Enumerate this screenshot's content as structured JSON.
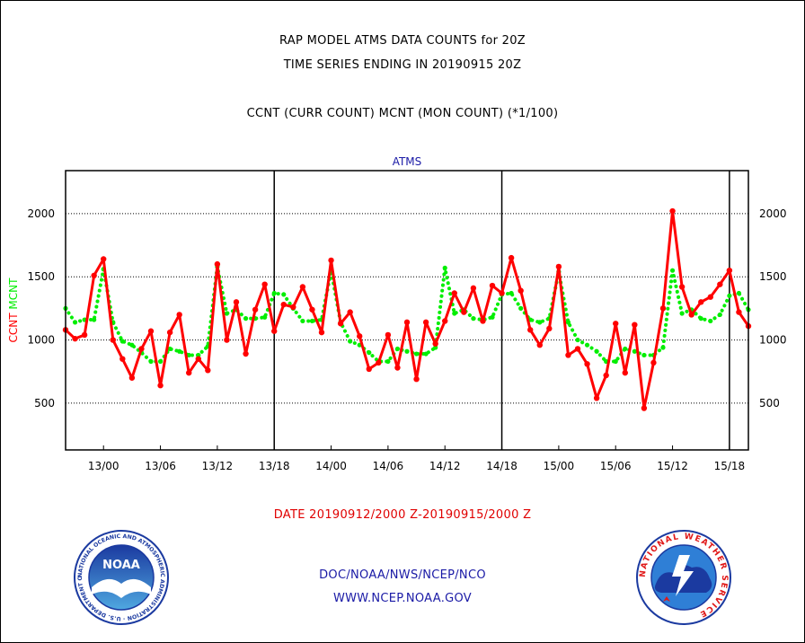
{
  "header": {
    "title_line1": "RAP MODEL ATMS DATA COUNTS for 20Z",
    "title_line2": "TIME SERIES ENDING IN 20190915 20Z",
    "subtitle": "CCNT (CURR COUNT) MCNT (MON COUNT) (*1/100)"
  },
  "footer": {
    "date_range": "DATE 20190912/2000 Z-20190915/2000 Z",
    "org": "DOC/NOAA/NWS/NCEP/NCO",
    "web": "WWW.NCEP.NOAA.GOV"
  },
  "logos": {
    "noaa_center": "NOAA",
    "noaa_ring": "NATIONAL OCEANIC AND ATMOSPHERIC ADMINISTRATION · U.S. DEPARTMENT OF COMMERCE",
    "nws_ring": "NATIONAL WEATHER SERVICE"
  },
  "chart_data": {
    "type": "line",
    "title": "ATMS",
    "ylabel_parts": [
      {
        "text": "CCNT",
        "color": "#ff0000"
      },
      {
        "text": "MCNT",
        "color": "#00ee00"
      }
    ],
    "x_unit": "hour index from 20190912/2000 Z",
    "xlim": [
      0,
      72
    ],
    "x_ticks": [
      {
        "x": 4,
        "label": "13/00"
      },
      {
        "x": 10,
        "label": "13/06"
      },
      {
        "x": 16,
        "label": "13/12"
      },
      {
        "x": 22,
        "label": "13/18"
      },
      {
        "x": 28,
        "label": "14/00"
      },
      {
        "x": 34,
        "label": "14/06"
      },
      {
        "x": 40,
        "label": "14/12"
      },
      {
        "x": 46,
        "label": "14/18"
      },
      {
        "x": 52,
        "label": "15/00"
      },
      {
        "x": 58,
        "label": "15/06"
      },
      {
        "x": 64,
        "label": "15/12"
      },
      {
        "x": 70,
        "label": "15/18"
      }
    ],
    "day_separators": [
      22,
      46,
      70
    ],
    "ylim": [
      130,
      2340
    ],
    "y_ticks": [
      500,
      1000,
      1500,
      2000
    ],
    "grid": "horizontal",
    "series": [
      {
        "name": "CCNT",
        "color": "#ff0000",
        "style": "solid",
        "values": [
          1080,
          1010,
          1040,
          1510,
          1640,
          1000,
          850,
          700,
          930,
          1070,
          640,
          1060,
          1200,
          740,
          850,
          760,
          1600,
          1000,
          1300,
          890,
          1240,
          1440,
          1070,
          1280,
          1260,
          1420,
          1240,
          1060,
          1630,
          1130,
          1220,
          1030,
          770,
          820,
          1040,
          780,
          1140,
          690,
          1140,
          970,
          1150,
          1370,
          1220,
          1410,
          1150,
          1430,
          1370,
          1650,
          1390,
          1080,
          960,
          1090,
          1580,
          880,
          930,
          810,
          540,
          720,
          1130,
          740,
          1120,
          460,
          820,
          1250,
          2020,
          1420,
          1200,
          1300,
          1340,
          1440,
          1550,
          1220,
          1110
        ]
      },
      {
        "name": "MCNT",
        "color": "#00ee00",
        "style": "dotted",
        "values": [
          1250,
          1140,
          1160,
          1160,
          1560,
          1140,
          990,
          960,
          900,
          830,
          830,
          930,
          910,
          880,
          880,
          950,
          1580,
          1210,
          1240,
          1170,
          1170,
          1180,
          1370,
          1360,
          1250,
          1150,
          1150,
          1160,
          1550,
          1140,
          990,
          960,
          900,
          830,
          830,
          930,
          910,
          890,
          890,
          940,
          1570,
          1210,
          1240,
          1170,
          1160,
          1180,
          1360,
          1370,
          1250,
          1160,
          1140,
          1170,
          1540,
          1140,
          1000,
          960,
          910,
          830,
          830,
          930,
          910,
          880,
          880,
          940,
          1550,
          1210,
          1240,
          1170,
          1150,
          1200,
          1350,
          1370,
          1240
        ]
      }
    ]
  }
}
